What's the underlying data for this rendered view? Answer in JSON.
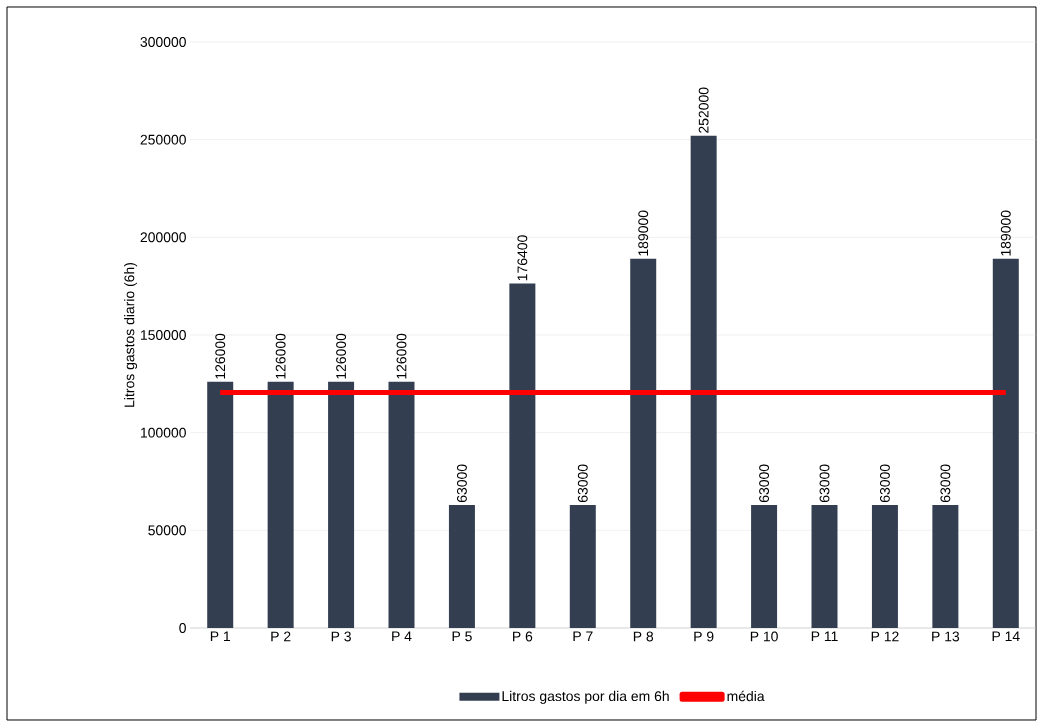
{
  "chart_data": {
    "type": "bar",
    "ylabel": "Litros gastos diario (6h)",
    "categories": [
      "P 1",
      "P 2",
      "P 3",
      "P 4",
      "P 5",
      "P 6",
      "P 7",
      "P 8",
      "P 9",
      "P 10",
      "P 11",
      "P 12",
      "P 13",
      "P 14"
    ],
    "series": [
      {
        "name": "Litros gastos por dia em 6h",
        "color": "#333f50",
        "values": [
          126000,
          126000,
          126000,
          126000,
          63000,
          176400,
          63000,
          189000,
          252000,
          63000,
          63000,
          63000,
          63000,
          189000
        ],
        "value_labels": [
          "126000",
          "126000",
          "126000",
          "126000",
          "63000",
          "176400",
          "63000",
          "189000",
          "252000",
          "63000",
          "63000",
          "63000",
          "63000",
          "189000"
        ]
      },
      {
        "name": "média",
        "type": "line",
        "color": "#ff0000",
        "values": [
          120600,
          120600,
          120600,
          120600,
          120600,
          120600,
          120600,
          120600,
          120600,
          120600,
          120600,
          120600,
          120600,
          120600
        ]
      }
    ],
    "ylim": [
      0,
      300000
    ],
    "yticks": [
      0,
      50000,
      100000,
      150000,
      200000,
      250000,
      300000
    ],
    "grid": "y",
    "legend": "bottom"
  }
}
